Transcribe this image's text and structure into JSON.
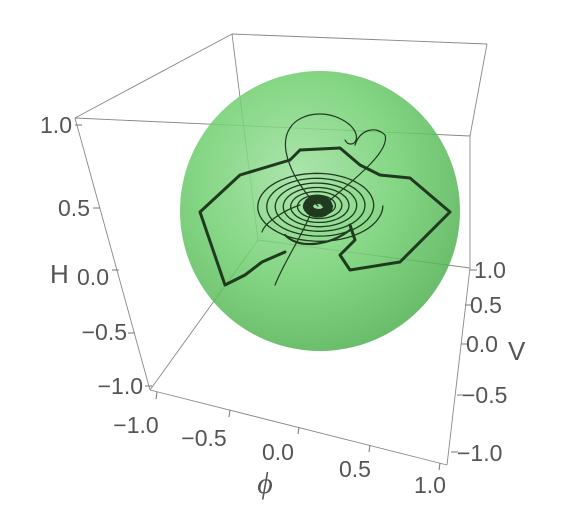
{
  "chart_data": {
    "type": "3d-parametric",
    "axes": {
      "x": {
        "label": "ϕ",
        "range": [
          -1.0,
          1.0
        ],
        "ticks": [
          "−1.0",
          "−0.5",
          "0.0",
          "0.5",
          "1.0"
        ]
      },
      "y": {
        "label": "V",
        "range": [
          -1.0,
          1.0
        ],
        "ticks": [
          "−1.0",
          "−0.5",
          "0.0",
          "0.5",
          "1.0"
        ]
      },
      "z": {
        "label": "H",
        "range": [
          -1.0,
          1.0
        ],
        "ticks": [
          "−1.0",
          "−0.5",
          "0.0",
          "0.5",
          "1.0"
        ]
      }
    },
    "sphere": {
      "center": [
        0,
        0,
        0
      ],
      "radius": 1.0,
      "color": "#5cc85c",
      "opacity": 0.7
    },
    "trajectory_color": "#1f3a1f",
    "boxed": true,
    "grid": false
  }
}
